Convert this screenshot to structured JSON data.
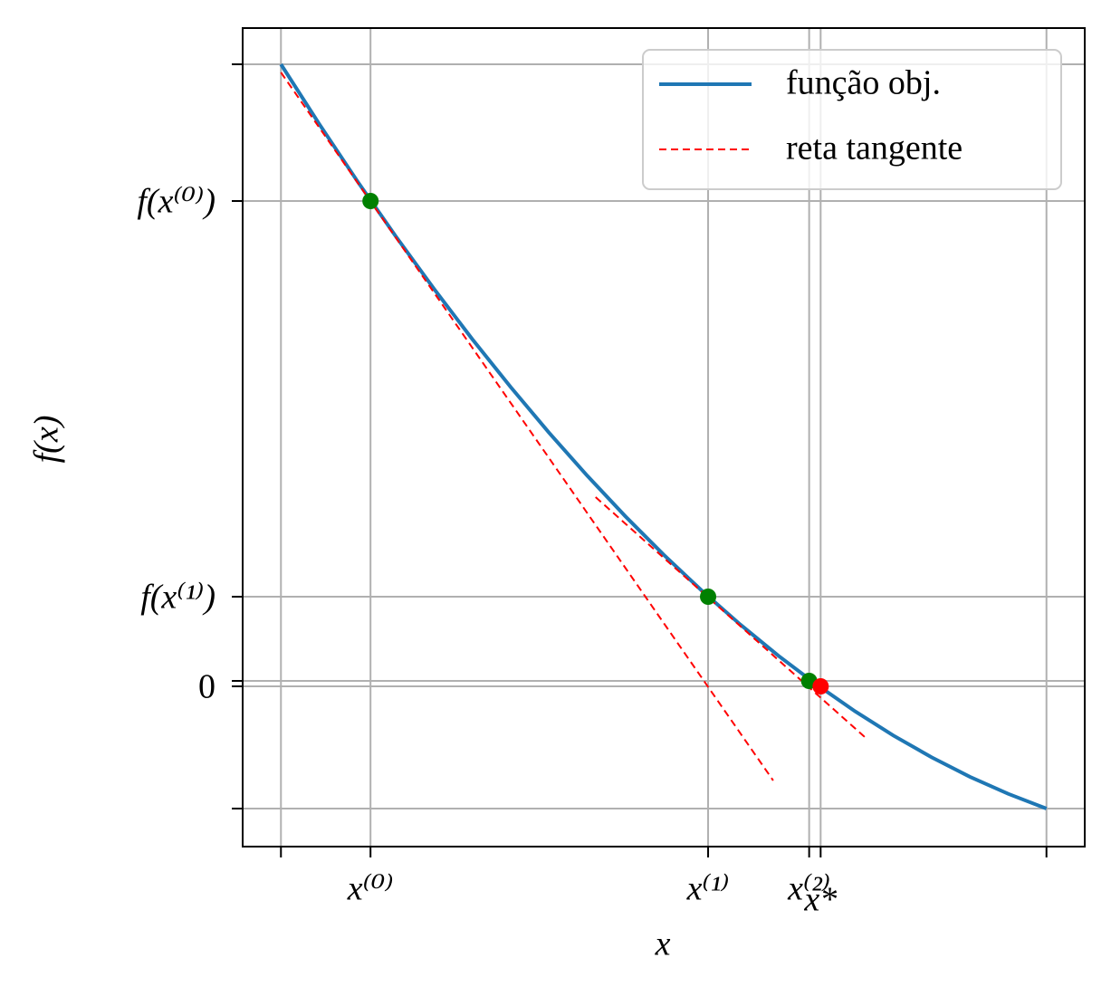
{
  "chart_data": {
    "type": "line",
    "xlabel": "x",
    "ylabel": "f(x)",
    "xlim": [
      -0.05,
      1.05
    ],
    "ylim": [
      -1.77,
      7.27
    ],
    "xticks": [
      {
        "value": 0,
        "label": null
      },
      {
        "value": 0.117,
        "label": "x⁽⁰⁾"
      },
      {
        "value": 0.558,
        "label": "x⁽¹⁾"
      },
      {
        "value": 0.69,
        "label": "x⁽²⁾"
      },
      {
        "value": 0.705,
        "label": "x*"
      },
      {
        "value": 1,
        "label": null
      }
    ],
    "yticks": [
      {
        "value": -1.35,
        "label": null
      },
      0,
      {
        "value": 0.06,
        "label": null
      },
      {
        "value": 0.99,
        "label": "f(x⁽¹⁾)"
      },
      {
        "value": 5.36,
        "label": "f(x⁽⁰⁾)"
      },
      {
        "value": 6.87,
        "label": null
      }
    ],
    "grid": true,
    "legend": "upper right",
    "series": [
      {
        "name": "função obj.",
        "color": "#1f77b4",
        "style": "solid",
        "x": [
          0,
          0.05,
          0.1,
          0.15,
          0.2,
          0.25,
          0.3,
          0.35,
          0.4,
          0.45,
          0.5,
          0.55,
          0.6,
          0.65,
          0.7,
          0.75,
          0.8,
          0.85,
          0.9,
          0.95,
          1
        ],
        "values": [
          6.87,
          6.211,
          5.577,
          4.97,
          4.389,
          3.834,
          3.306,
          2.803,
          2.327,
          1.877,
          1.453,
          1.055,
          0.683,
          0.337,
          0.018,
          -0.276,
          -0.543,
          -0.784,
          -0.999,
          -1.187,
          -1.35
        ]
      },
      {
        "name": "reta tangente",
        "color": "#ff0000",
        "style": "dashed",
        "segments": [
          {
            "x": [
              0,
              0.643
            ],
            "values": [
              6.78,
              -1.04
            ]
          },
          {
            "x": [
              0.411,
              0.764
            ],
            "values": [
              2.09,
              -0.57
            ]
          }
        ]
      }
    ],
    "points": [
      {
        "color": "#008000",
        "x": [
          0.117,
          0.558,
          0.69
        ],
        "values": [
          5.36,
          0.99,
          0.06
        ]
      },
      {
        "color": "#ff0000",
        "x": [
          0.705
        ],
        "values": [
          0
        ]
      }
    ]
  }
}
